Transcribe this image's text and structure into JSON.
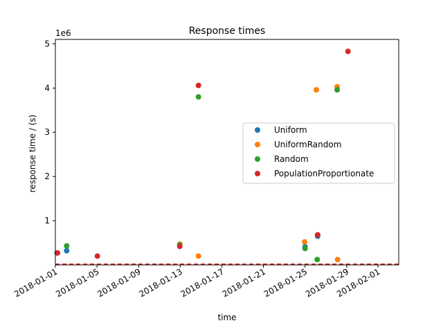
{
  "chart_data": {
    "type": "scatter",
    "title": "Response times",
    "xlabel": "time",
    "ylabel": "response time / (s)",
    "y_multiplier_label": "1e6",
    "x_is_date": true,
    "xlim": [
      "2018-01-01",
      "2018-02-03"
    ],
    "ylim": [
      0,
      5100000
    ],
    "yticks": [
      1000000,
      2000000,
      3000000,
      4000000,
      5000000
    ],
    "ytick_labels": [
      "1",
      "2",
      "3",
      "4",
      "5"
    ],
    "xticks": [
      "2018-01-01",
      "2018-01-05",
      "2018-01-09",
      "2018-01-13",
      "2018-01-17",
      "2018-01-21",
      "2018-01-25",
      "2018-01-29",
      "2018-02-01"
    ],
    "xtick_labels": [
      "2018-01-01",
      "2018-01-05",
      "2018-01-09",
      "2018-01-13",
      "2018-01-17",
      "2018-01-21",
      "2018-01-25",
      "2018-01-29",
      "2018-02-01"
    ],
    "grid": false,
    "legend_position": "center-right",
    "baseline_line_style": "dashed",
    "series": [
      {
        "name": "Uniform",
        "color": "#1f77b4",
        "points": [
          {
            "x": "2018-01-01T04:00",
            "y": 270000
          },
          {
            "x": "2018-01-02T02:00",
            "y": 320000
          },
          {
            "x": "2018-01-25T00:00",
            "y": 410000
          },
          {
            "x": "2018-01-26T05:00",
            "y": 650000
          }
        ]
      },
      {
        "name": "UniformRandom",
        "color": "#ff7f0e",
        "points": [
          {
            "x": "2018-01-12T23:00",
            "y": 470000
          },
          {
            "x": "2018-01-14T18:00",
            "y": 200000
          },
          {
            "x": "2018-01-24T23:00",
            "y": 520000
          },
          {
            "x": "2018-01-26T02:00",
            "y": 3960000
          },
          {
            "x": "2018-01-28T02:00",
            "y": 4030000
          },
          {
            "x": "2018-01-28T03:00",
            "y": 120000
          }
        ]
      },
      {
        "name": "Random",
        "color": "#2ca02c",
        "points": [
          {
            "x": "2018-01-02T02:00",
            "y": 430000
          },
          {
            "x": "2018-01-12T23:00",
            "y": 450000
          },
          {
            "x": "2018-01-14T18:00",
            "y": 3800000
          },
          {
            "x": "2018-01-25T00:00",
            "y": 370000
          },
          {
            "x": "2018-01-26T04:00",
            "y": 120000
          },
          {
            "x": "2018-01-28T02:00",
            "y": 3960000
          }
        ]
      },
      {
        "name": "PopulationProportionate",
        "color": "#d62728",
        "points": [
          {
            "x": "2018-01-01T05:00",
            "y": 270000
          },
          {
            "x": "2018-01-05T01:00",
            "y": 200000
          },
          {
            "x": "2018-01-12T23:00",
            "y": 420000
          },
          {
            "x": "2018-01-14T18:00",
            "y": 4060000
          },
          {
            "x": "2018-01-26T05:00",
            "y": 680000
          },
          {
            "x": "2018-01-29T03:00",
            "y": 4830000
          }
        ]
      }
    ]
  }
}
